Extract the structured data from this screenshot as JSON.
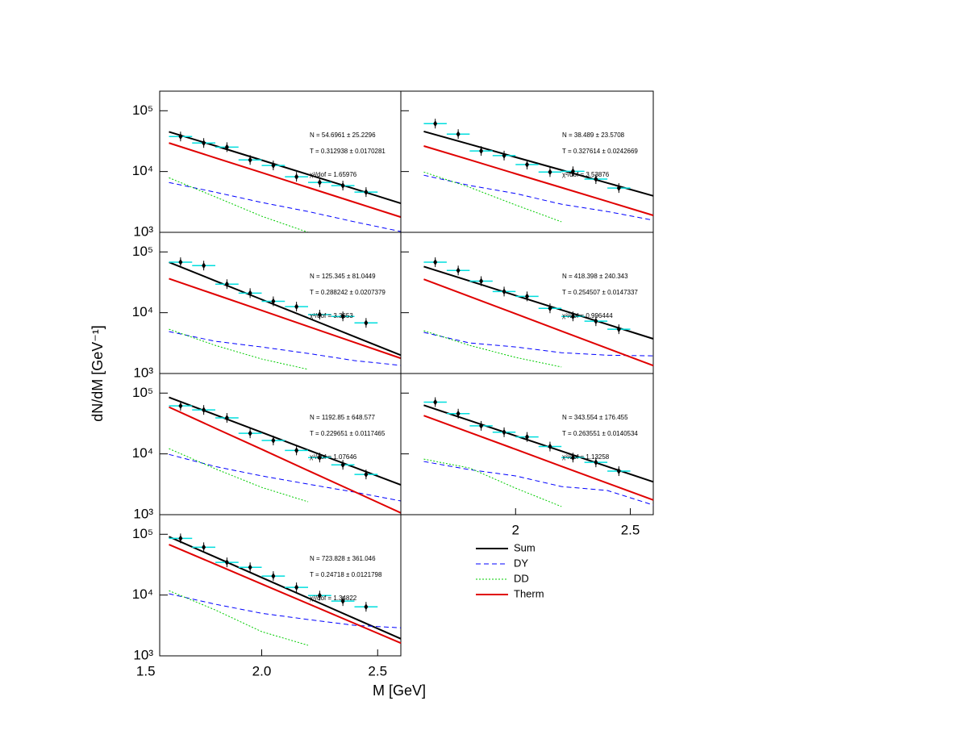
{
  "chart_data": {
    "type": "line",
    "yscale": "log",
    "grid": false,
    "xlabel": "M [GeV]",
    "ylabel": "dN/dM [GeV⁻¹]",
    "ylim": [
      1000,
      210000
    ],
    "yticks": [
      {
        "value": 1000,
        "label": "10³"
      },
      {
        "value": 10000,
        "label": "10⁴"
      },
      {
        "value": 100000,
        "label": "10⁵"
      }
    ],
    "x": [
      1.6,
      1.8,
      2.0,
      2.2,
      2.4,
      2.6
    ],
    "points_x": [
      1.65,
      1.75,
      1.85,
      1.95,
      2.05,
      2.15,
      2.25,
      2.35,
      2.45
    ],
    "xerr": 0.05,
    "point_color": "#000000",
    "xerr_color": "#00dede",
    "series": [
      {
        "name": "Sum",
        "color": "#000000",
        "dash": "solid"
      },
      {
        "name": "DY",
        "color": "#0000ff",
        "dash": "dashed"
      },
      {
        "name": "DD",
        "color": "#00cc00",
        "dash": "dotted"
      },
      {
        "name": "Therm",
        "color": "#e00000",
        "dash": "solid"
      }
    ],
    "panels": [
      {
        "xlim": [
          1.56,
          2.6
        ],
        "N": "N = 54.6961 ± 25.2296",
        "T": "T = 0.312938 ± 0.0170281",
        "chi2": "χ²/dof = 1.65976",
        "points": [
          37700,
          29500,
          25200,
          15500,
          12600,
          8200,
          6630,
          5870,
          4590
        ],
        "curves": [
          [
            45000,
            26500,
            15400,
            8950,
            5200,
            3000
          ],
          [
            6600,
            4570,
            3100,
            2200,
            1490,
            1030
          ],
          [
            7900,
            3830,
            1840,
            1000,
            null,
            null
          ],
          [
            29500,
            16800,
            9600,
            5470,
            3120,
            1780
          ]
        ]
      },
      {
        "xlim": [
          1.5,
          2.6
        ],
        "N": "N = 38.489 ± 23.5708",
        "T": "T = 0.327614 ± 0.0242669",
        "chi2": "χ²/dof = 3.53876",
        "points": [
          61400,
          41300,
          21800,
          18300,
          13000,
          9800,
          10100,
          7500,
          5350
        ],
        "curves": [
          [
            45700,
            28100,
            17200,
            10600,
            6490,
            3980
          ],
          [
            8700,
            5900,
            4350,
            2900,
            2200,
            1580
          ],
          [
            9800,
            5500,
            2820,
            1490,
            null,
            null
          ],
          [
            26300,
            15600,
            9200,
            5450,
            3220,
            1900
          ]
        ]
      },
      {
        "xlim": [
          1.56,
          2.6
        ],
        "N": "N = 125.345 ± 81.0449",
        "T": "T = 0.288242 ± 0.0207379",
        "chi2": "χ²/dof = 3.3653",
        "points": [
          67700,
          59600,
          29500,
          21000,
          15400,
          12600,
          9300,
          8700,
          6800
        ],
        "curves": [
          [
            67600,
            33400,
            16500,
            8170,
            4040,
            2000
          ],
          [
            4900,
            3390,
            2730,
            2140,
            1630,
            1360
          ],
          [
            5350,
            2900,
            1730,
            1170,
            null,
            null
          ],
          [
            36300,
            19900,
            10900,
            5940,
            3250,
            1780
          ]
        ]
      },
      {
        "xlim": [
          1.5,
          2.6
        ],
        "N": "N = 418.398 ± 240.343",
        "T": "T = 0.254507 ± 0.0147337",
        "chi2": "χ²/dof = 0.996444",
        "points": [
          67700,
          49500,
          33100,
          22300,
          18600,
          11800,
          8700,
          7250,
          5350
        ],
        "curves": [
          [
            57500,
            33300,
            19200,
            11100,
            6430,
            3720
          ],
          [
            4750,
            3180,
            2730,
            2200,
            2000,
            1950
          ],
          [
            5050,
            2900,
            1840,
            1280,
            null,
            null
          ],
          [
            35500,
            18500,
            9600,
            4990,
            2590,
            1350
          ]
        ]
      },
      {
        "xlim": [
          1.56,
          2.6
        ],
        "N": "N = 1192.85 ± 648.577",
        "T": "T = 0.229651 ± 0.0117465",
        "chi2": "χ²/dof = 1.07646",
        "points": [
          61600,
          52800,
          39100,
          21800,
          16600,
          11400,
          8700,
          6600,
          4590
        ],
        "curves": [
          [
            85100,
            43900,
            22600,
            11600,
            6000,
            3090
          ],
          [
            9800,
            6200,
            4340,
            3180,
            2350,
            1680
          ],
          [
            12200,
            5680,
            2810,
            1630,
            null,
            null
          ],
          [
            58900,
            26400,
            11900,
            5320,
            2390,
            1070
          ]
        ]
      },
      {
        "xlim": [
          1.5,
          2.6
        ],
        "xticks": [
          2,
          2.5
        ],
        "N": "N = 343.554 ± 176.455",
        "T": "T = 0.263551 ± 0.0140534",
        "chi2": "χ²/dof = 1.13258",
        "points": [
          71000,
          45900,
          28900,
          22700,
          19000,
          13200,
          8700,
          7250,
          5200
        ],
        "curves": [
          [
            63100,
            35300,
            19800,
            11100,
            6190,
            3470
          ],
          [
            7500,
            5500,
            4340,
            2900,
            2500,
            1440
          ],
          [
            8200,
            5850,
            2730,
            1360,
            null,
            null
          ],
          [
            42700,
            22500,
            11900,
            6250,
            3300,
            1740
          ]
        ]
      },
      {
        "xlim": [
          1.56,
          2.6
        ],
        "xticks": [
          1.5,
          {
            "value": 2,
            "label": "2.0"
          },
          2.5
        ],
        "N": "N = 723.828 ± 361.046",
        "T": "T = 0.24718 ± 0.0121798",
        "chi2": "χ²/dof = 1.34822",
        "points": [
          85600,
          61200,
          34500,
          28600,
          20500,
          13400,
          9800,
          7950,
          6410
        ],
        "curves": [
          [
            91200,
            42100,
            19400,
            8950,
            4130,
            1910
          ],
          [
            10500,
            7070,
            5010,
            3960,
            3180,
            2890
          ],
          [
            11800,
            5680,
            2500,
            1490,
            null,
            null
          ],
          [
            67600,
            32100,
            15200,
            7210,
            3420,
            1620
          ]
        ]
      }
    ]
  }
}
